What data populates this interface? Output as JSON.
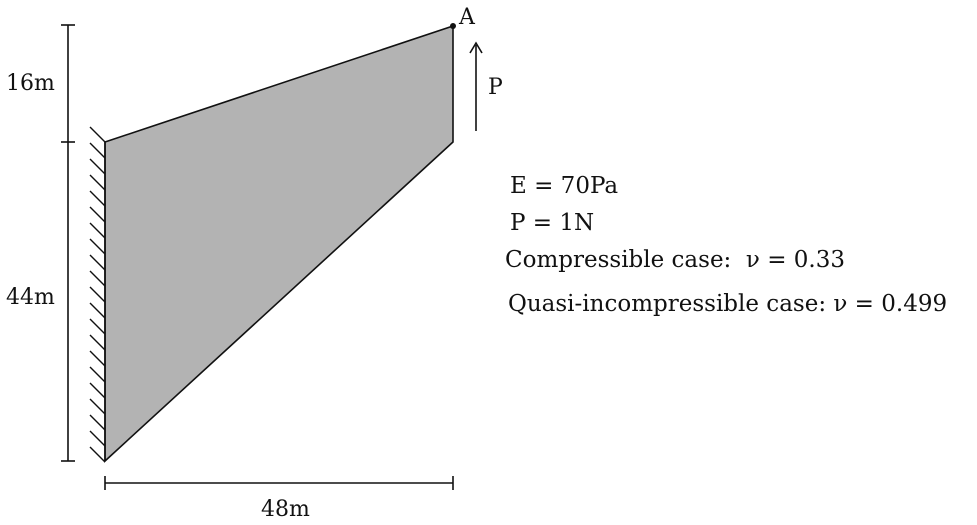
{
  "dimensions": {
    "top_height": "16m",
    "bottom_height": "44m",
    "width": "48m"
  },
  "point_label": "A",
  "load_label": "P",
  "parameters": [
    "E = 70Pa",
    "P = 1N",
    "Compressible case:  ν = 0.33",
    "Quasi-incompressible case: ν = 0.499"
  ],
  "colors": {
    "panel_fill": "#b3b3b3",
    "stroke": "#111111"
  }
}
